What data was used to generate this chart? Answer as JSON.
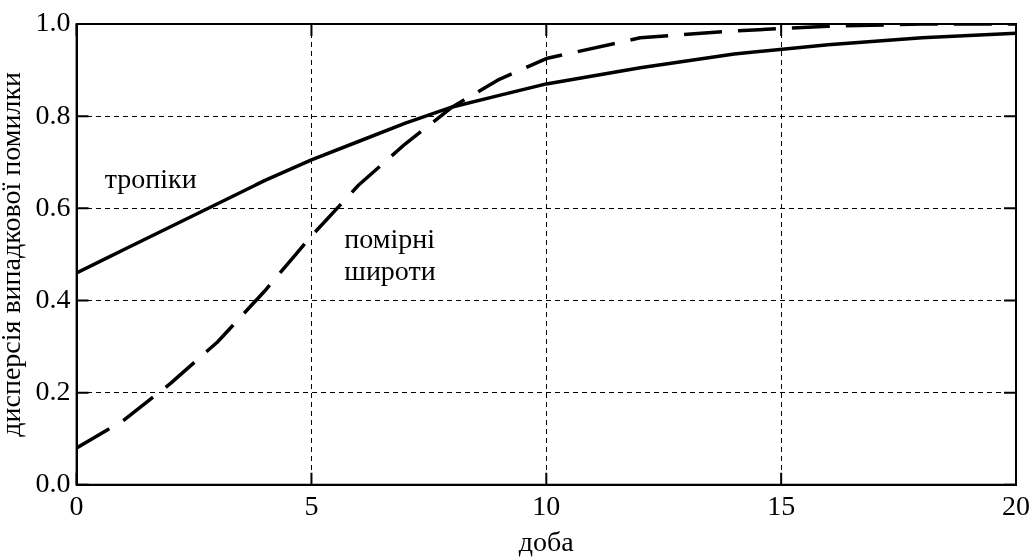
{
  "chart_data": {
    "type": "line",
    "xlabel": "доба",
    "ylabel": "дисперсія випадкової помилки",
    "x": [
      0,
      1,
      2,
      3,
      4,
      5,
      6,
      7,
      8,
      9,
      10,
      12,
      14,
      16,
      18,
      20
    ],
    "series": [
      {
        "name": "тропіки",
        "color": "#000000",
        "line_style": "solid",
        "values": [
          0.46,
          0.51,
          0.56,
          0.61,
          0.66,
          0.705,
          0.745,
          0.785,
          0.82,
          0.845,
          0.87,
          0.905,
          0.935,
          0.955,
          0.97,
          0.98
        ]
      },
      {
        "name": "помірні широти",
        "color": "#000000",
        "line_style": "dashed",
        "values": [
          0.08,
          0.14,
          0.22,
          0.31,
          0.42,
          0.54,
          0.65,
          0.74,
          0.82,
          0.88,
          0.925,
          0.97,
          0.985,
          0.995,
          1.0,
          1.0
        ]
      }
    ],
    "xlim": [
      0,
      20
    ],
    "xticks": [
      0,
      5,
      10,
      15,
      20
    ],
    "ylim": [
      0,
      1
    ],
    "yticks": [
      {
        "value": 0,
        "label": "0.0"
      },
      {
        "value": 0.2,
        "label": "0.2"
      },
      {
        "value": 0.4,
        "label": "0.4"
      },
      {
        "value": 0.6,
        "label": "0.6"
      },
      {
        "value": 0.8,
        "label": "0.8"
      },
      {
        "value": 1,
        "label": "1.0"
      }
    ],
    "grid": true,
    "legend": false,
    "marker": "none"
  }
}
